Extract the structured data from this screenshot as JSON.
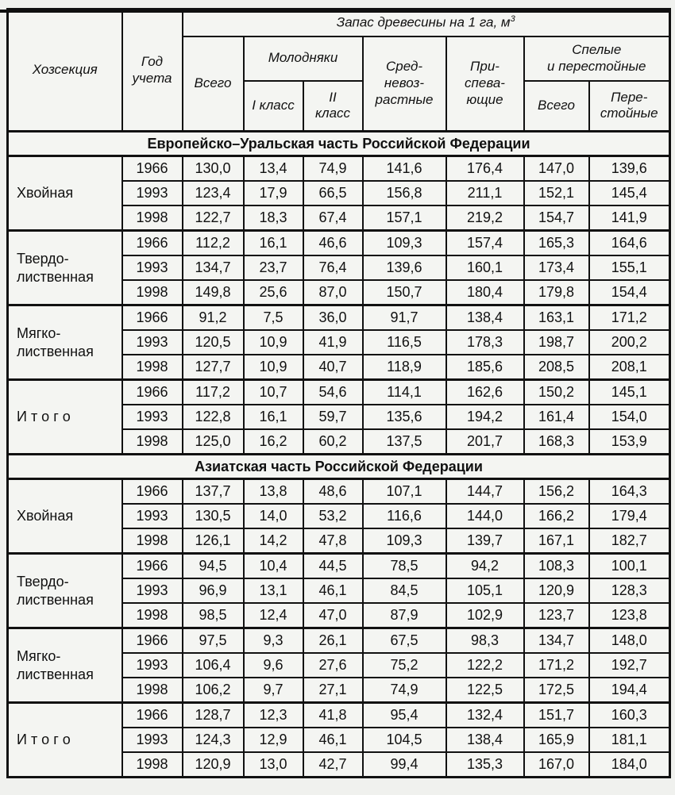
{
  "page": {
    "background": "#f0f1ee",
    "border_color": "#111111"
  },
  "table": {
    "unit_header": {
      "text": "Запас древесины на 1 га, м",
      "sup": "3"
    },
    "columns": {
      "hozsection": "Хозсекция",
      "year": "Год\nучета",
      "total": "Всего",
      "young": "Молодняки",
      "young_class1": "I класс",
      "young_class2": "II\nкласс",
      "middle_aged": "Сред-\nневоз-\nрастные",
      "maturing": "При-\nспева-\nющие",
      "mature_overmature": "Спелые\nи перестойные",
      "mature_total": "Всего",
      "overmature": "Пере-\nстойные"
    },
    "sections": [
      {
        "title": "Европейско–Уральская часть Российской Федерации",
        "groups": [
          {
            "name": "Хвойная",
            "rows": [
              {
                "year": "1966",
                "values": [
                  "130,0",
                  "13,4",
                  "74,9",
                  "141,6",
                  "176,4",
                  "147,0",
                  "139,6"
                ]
              },
              {
                "year": "1993",
                "values": [
                  "123,4",
                  "17,9",
                  "66,5",
                  "156,8",
                  "211,1",
                  "152,1",
                  "145,4"
                ]
              },
              {
                "year": "1998",
                "values": [
                  "122,7",
                  "18,3",
                  "67,4",
                  "157,1",
                  "219,2",
                  "154,7",
                  "141,9"
                ]
              }
            ]
          },
          {
            "name": "Твердо-\nлиственная",
            "rows": [
              {
                "year": "1966",
                "values": [
                  "112,2",
                  "16,1",
                  "46,6",
                  "109,3",
                  "157,4",
                  "165,3",
                  "164,6"
                ]
              },
              {
                "year": "1993",
                "values": [
                  "134,7",
                  "23,7",
                  "76,4",
                  "139,6",
                  "160,1",
                  "173,4",
                  "155,1"
                ]
              },
              {
                "year": "1998",
                "values": [
                  "149,8",
                  "25,6",
                  "87,0",
                  "150,7",
                  "180,4",
                  "179,8",
                  "154,4"
                ]
              }
            ]
          },
          {
            "name": "Мягко-\nлиственная",
            "rows": [
              {
                "year": "1966",
                "values": [
                  "91,2",
                  "7,5",
                  "36,0",
                  "91,7",
                  "138,4",
                  "163,1",
                  "171,2"
                ]
              },
              {
                "year": "1993",
                "values": [
                  "120,5",
                  "10,9",
                  "41,9",
                  "116,5",
                  "178,3",
                  "198,7",
                  "200,2"
                ]
              },
              {
                "year": "1998",
                "values": [
                  "127,7",
                  "10,9",
                  "40,7",
                  "118,9",
                  "185,6",
                  "208,5",
                  "208,1"
                ]
              }
            ]
          },
          {
            "name": "И т о г о",
            "rows": [
              {
                "year": "1966",
                "values": [
                  "117,2",
                  "10,7",
                  "54,6",
                  "114,1",
                  "162,6",
                  "150,2",
                  "145,1"
                ]
              },
              {
                "year": "1993",
                "values": [
                  "122,8",
                  "16,1",
                  "59,7",
                  "135,6",
                  "194,2",
                  "161,4",
                  "154,0"
                ]
              },
              {
                "year": "1998",
                "values": [
                  "125,0",
                  "16,2",
                  "60,2",
                  "137,5",
                  "201,7",
                  "168,3",
                  "153,9"
                ]
              }
            ]
          }
        ]
      },
      {
        "title": "Азиатская часть Российской Федерации",
        "groups": [
          {
            "name": "Хвойная",
            "rows": [
              {
                "year": "1966",
                "values": [
                  "137,7",
                  "13,8",
                  "48,6",
                  "107,1",
                  "144,7",
                  "156,2",
                  "164,3"
                ]
              },
              {
                "year": "1993",
                "values": [
                  "130,5",
                  "14,0",
                  "53,2",
                  "116,6",
                  "144,0",
                  "166,2",
                  "179,4"
                ]
              },
              {
                "year": "1998",
                "values": [
                  "126,1",
                  "14,2",
                  "47,8",
                  "109,3",
                  "139,7",
                  "167,1",
                  "182,7"
                ]
              }
            ]
          },
          {
            "name": "Твердо-\nлиственная",
            "rows": [
              {
                "year": "1966",
                "values": [
                  "94,5",
                  "10,4",
                  "44,5",
                  "78,5",
                  "94,2",
                  "108,3",
                  "100,1"
                ]
              },
              {
                "year": "1993",
                "values": [
                  "96,9",
                  "13,1",
                  "46,1",
                  "84,5",
                  "105,1",
                  "120,9",
                  "128,3"
                ]
              },
              {
                "year": "1998",
                "values": [
                  "98,5",
                  "12,4",
                  "47,0",
                  "87,9",
                  "102,9",
                  "123,7",
                  "123,8"
                ]
              }
            ]
          },
          {
            "name": "Мягко-\nлиственная",
            "rows": [
              {
                "year": "1966",
                "values": [
                  "97,5",
                  "9,3",
                  "26,1",
                  "67,5",
                  "98,3",
                  "134,7",
                  "148,0"
                ]
              },
              {
                "year": "1993",
                "values": [
                  "106,4",
                  "9,6",
                  "27,6",
                  "75,2",
                  "122,2",
                  "171,2",
                  "192,7"
                ]
              },
              {
                "year": "1998",
                "values": [
                  "106,2",
                  "9,7",
                  "27,1",
                  "74,9",
                  "122,5",
                  "172,5",
                  "194,4"
                ]
              }
            ]
          },
          {
            "name": "И т о г о",
            "rows": [
              {
                "year": "1966",
                "values": [
                  "128,7",
                  "12,3",
                  "41,8",
                  "95,4",
                  "132,4",
                  "151,7",
                  "160,3"
                ]
              },
              {
                "year": "1993",
                "values": [
                  "124,3",
                  "12,9",
                  "46,1",
                  "104,5",
                  "138,4",
                  "165,9",
                  "181,1"
                ]
              },
              {
                "year": "1998",
                "values": [
                  "120,9",
                  "13,0",
                  "42,7",
                  "99,4",
                  "135,3",
                  "167,0",
                  "184,0"
                ]
              }
            ]
          }
        ]
      }
    ]
  }
}
